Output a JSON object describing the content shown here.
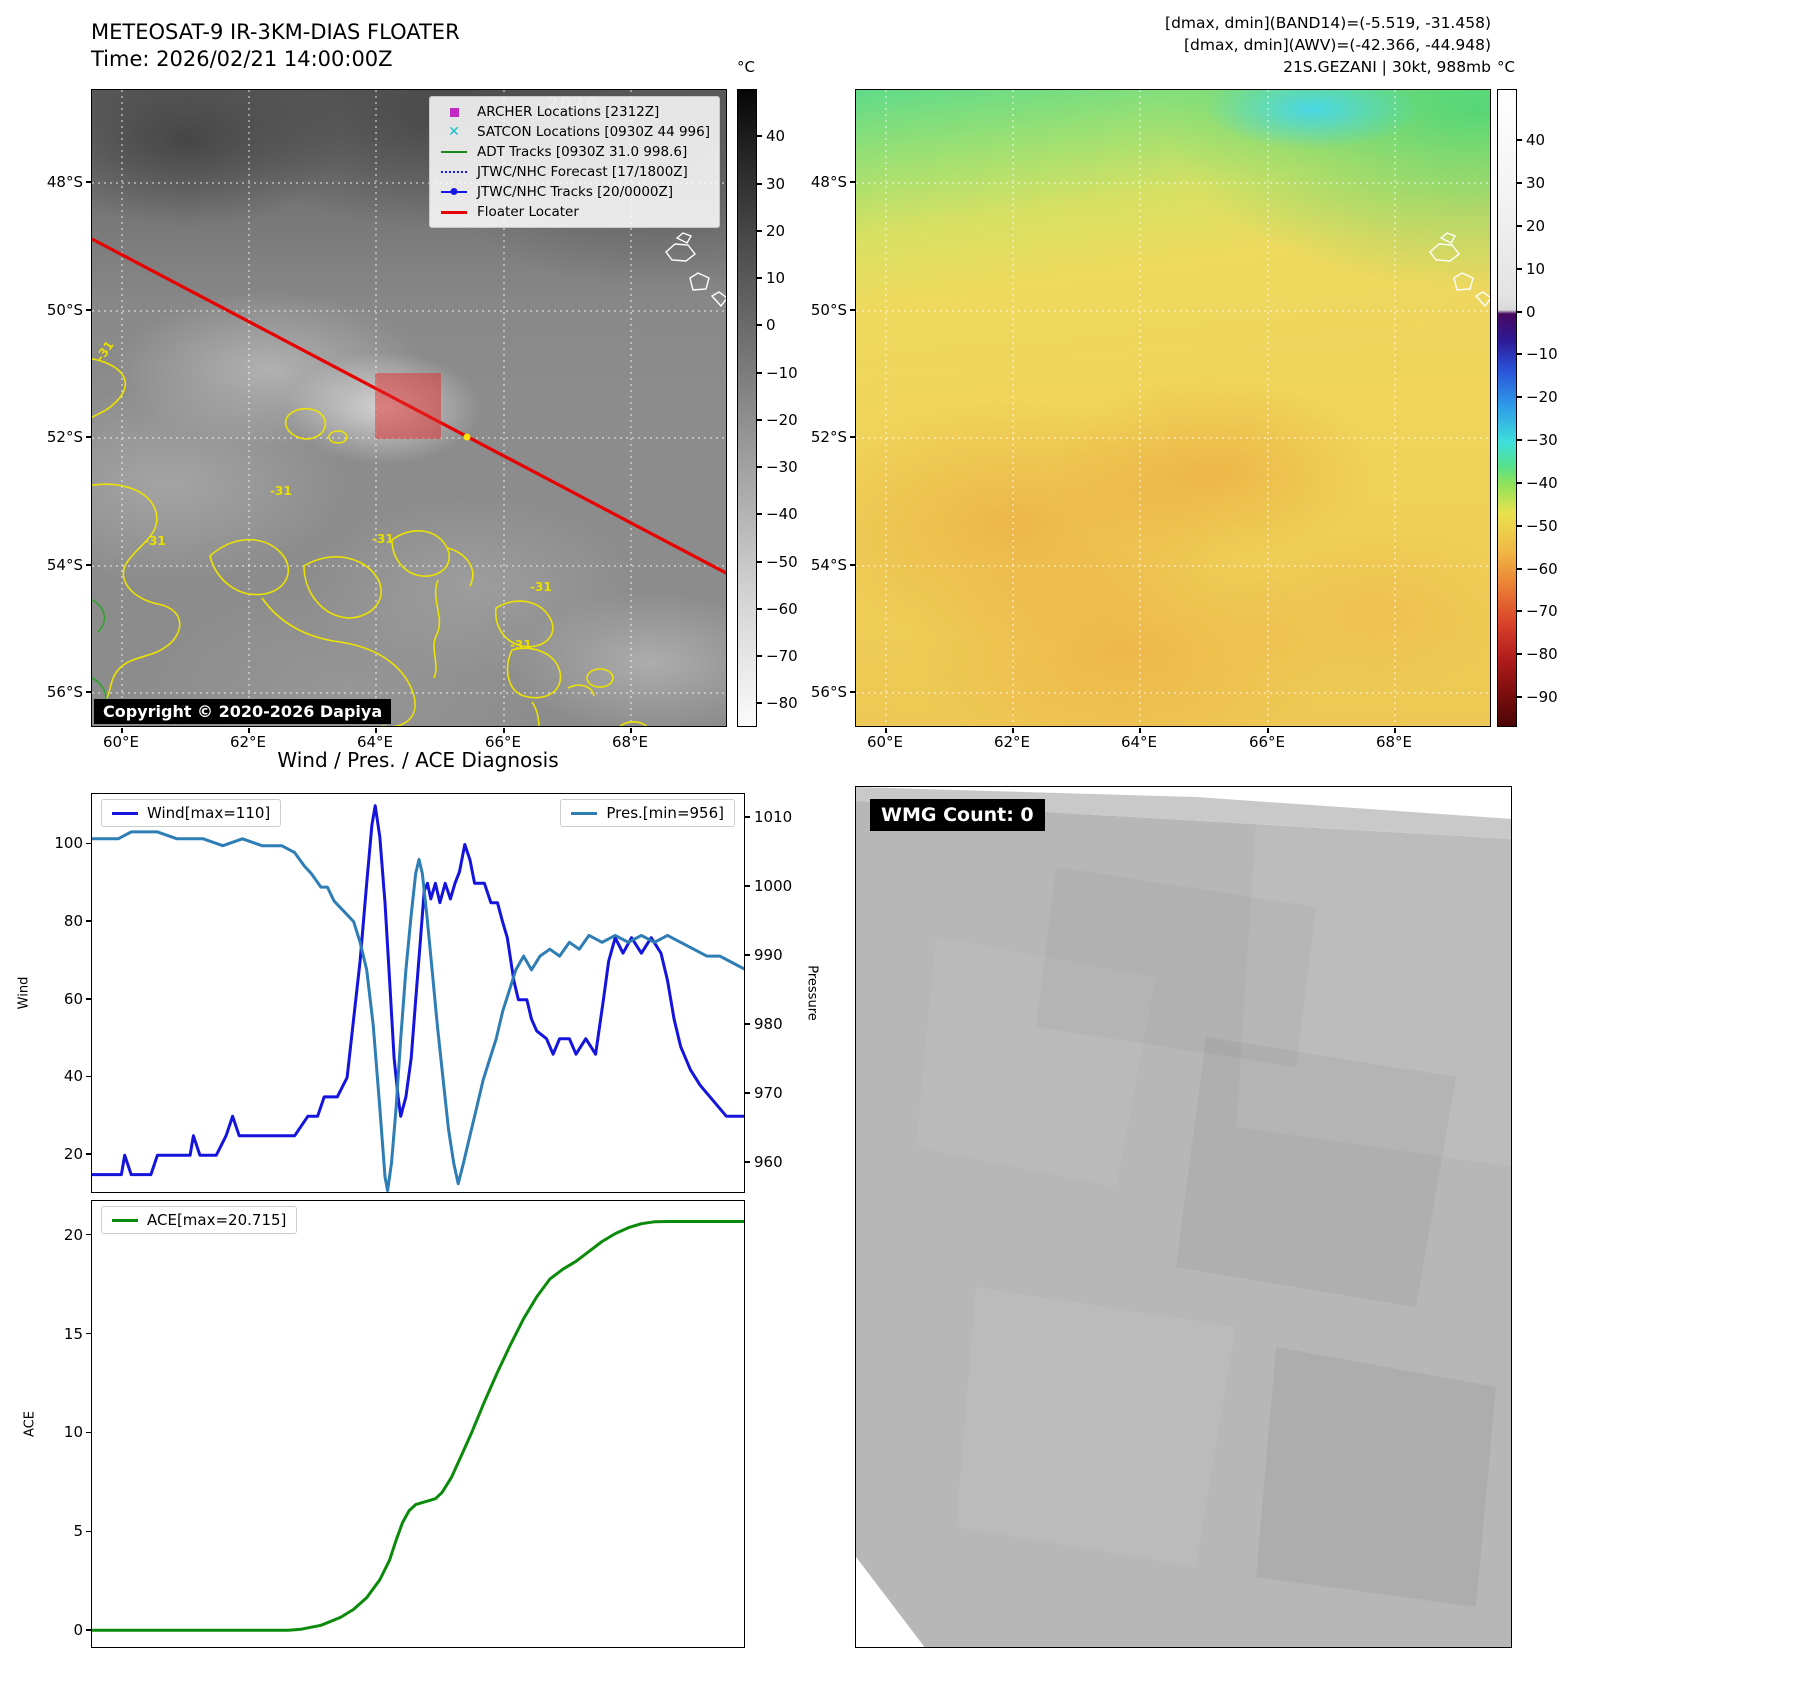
{
  "panels": {
    "tl": {
      "title": "METEOSAT-9 IR-3KM-DIAS FLOATER",
      "subtitle": "Time: 2026/02/21 14:00:00Z",
      "copyright": "Copyright © 2020-2026 Dapiya",
      "watermark": "2026",
      "contour_label": "-31",
      "colorbar": {
        "unit": "°C",
        "ticks": [
          40,
          30,
          20,
          10,
          0,
          -10,
          -20,
          -30,
          -40,
          -50,
          -60,
          -70,
          -80
        ]
      },
      "lat_ticks": [
        "48°S",
        "50°S",
        "52°S",
        "54°S",
        "56°S"
      ],
      "lon_ticks": [
        "60°E",
        "62°E",
        "64°E",
        "66°E",
        "68°E"
      ],
      "legend": {
        "items": [
          {
            "marker": "square-magenta",
            "label": "ARCHER Locations [2312Z]"
          },
          {
            "marker": "cross-cyan",
            "label": "SATCON Locations [0930Z 44 996]"
          },
          {
            "marker": "line-green",
            "label": "ADT Tracks [0930Z 31.0 998.6]"
          },
          {
            "marker": "line-dotted-blue",
            "label": "JTWC/NHC Forecast [17/1800Z]"
          },
          {
            "marker": "line-dot-blue",
            "label": "JTWC/NHC Tracks [20/0000Z]"
          },
          {
            "marker": "line-red",
            "label": "Floater Locater"
          }
        ]
      }
    },
    "tr": {
      "header_lines": [
        "[dmax, dmin](BAND14)=(-5.519, -31.458)",
        "[dmax, dmin](AWV)=(-42.366, -44.948)",
        "21S.GEZANI | 30kt, 988mb"
      ],
      "colorbar": {
        "unit": "°C",
        "ticks": [
          40,
          30,
          20,
          10,
          0,
          -10,
          -20,
          -30,
          -40,
          -50,
          -60,
          -70,
          -80,
          -90
        ]
      },
      "lat_ticks": [
        "48°S",
        "50°S",
        "52°S",
        "54°S",
        "56°S"
      ],
      "lon_ticks": [
        "60°E",
        "62°E",
        "64°E",
        "66°E",
        "68°E"
      ]
    },
    "bl": {
      "title": "Wind / Pres. / ACE Diagnosis"
    },
    "br": {
      "label": "WMG Count: 0"
    }
  },
  "chart_data": [
    {
      "type": "line",
      "title": "Wind / Pres. / ACE Diagnosis",
      "x_range": [
        0,
        1
      ],
      "grid": false,
      "legend_position": "top-left and top-right",
      "left_axis": {
        "label": "Wind",
        "ticks": [
          100,
          80,
          60,
          40,
          20
        ],
        "range": [
          10,
          113
        ]
      },
      "right_axis": {
        "label": "Pressure",
        "ticks": [
          1010,
          1000,
          990,
          980,
          970,
          960
        ],
        "range": [
          955.5,
          1013.5
        ]
      },
      "series": [
        {
          "name": "Wind[max=110]",
          "axis": "left",
          "color": "#1414dd",
          "points": [
            [
              0,
              15
            ],
            [
              0.03,
              15
            ],
            [
              0.045,
              15
            ],
            [
              0.05,
              20
            ],
            [
              0.06,
              15
            ],
            [
              0.09,
              15
            ],
            [
              0.1,
              20
            ],
            [
              0.13,
              20
            ],
            [
              0.15,
              20
            ],
            [
              0.155,
              25
            ],
            [
              0.165,
              20
            ],
            [
              0.19,
              20
            ],
            [
              0.205,
              25
            ],
            [
              0.215,
              30
            ],
            [
              0.225,
              25
            ],
            [
              0.25,
              25
            ],
            [
              0.28,
              25
            ],
            [
              0.31,
              25
            ],
            [
              0.33,
              30
            ],
            [
              0.345,
              30
            ],
            [
              0.355,
              35
            ],
            [
              0.375,
              35
            ],
            [
              0.39,
              40
            ],
            [
              0.4,
              55
            ],
            [
              0.41,
              70
            ],
            [
              0.42,
              90
            ],
            [
              0.428,
              105
            ],
            [
              0.433,
              110
            ],
            [
              0.44,
              102
            ],
            [
              0.448,
              85
            ],
            [
              0.455,
              65
            ],
            [
              0.462,
              45
            ],
            [
              0.468,
              35
            ],
            [
              0.472,
              30
            ],
            [
              0.48,
              35
            ],
            [
              0.488,
              45
            ],
            [
              0.495,
              60
            ],
            [
              0.502,
              75
            ],
            [
              0.508,
              88
            ],
            [
              0.513,
              90
            ],
            [
              0.518,
              86
            ],
            [
              0.525,
              90
            ],
            [
              0.532,
              85
            ],
            [
              0.54,
              90
            ],
            [
              0.548,
              86
            ],
            [
              0.555,
              90
            ],
            [
              0.562,
              93
            ],
            [
              0.57,
              100
            ],
            [
              0.578,
              96
            ],
            [
              0.585,
              90
            ],
            [
              0.6,
              90
            ],
            [
              0.61,
              85
            ],
            [
              0.62,
              85
            ],
            [
              0.628,
              80
            ],
            [
              0.635,
              76
            ],
            [
              0.645,
              65
            ],
            [
              0.652,
              60
            ],
            [
              0.665,
              60
            ],
            [
              0.672,
              55
            ],
            [
              0.68,
              52
            ],
            [
              0.695,
              50
            ],
            [
              0.705,
              46
            ],
            [
              0.715,
              50
            ],
            [
              0.73,
              50
            ],
            [
              0.74,
              46
            ],
            [
              0.755,
              50
            ],
            [
              0.77,
              46
            ],
            [
              0.782,
              60
            ],
            [
              0.79,
              70
            ],
            [
              0.8,
              76
            ],
            [
              0.812,
              72
            ],
            [
              0.825,
              76
            ],
            [
              0.84,
              72
            ],
            [
              0.855,
              76
            ],
            [
              0.87,
              72
            ],
            [
              0.88,
              65
            ],
            [
              0.89,
              55
            ],
            [
              0.9,
              48
            ],
            [
              0.915,
              42
            ],
            [
              0.93,
              38
            ],
            [
              0.95,
              34
            ],
            [
              0.97,
              30
            ],
            [
              1,
              30
            ]
          ]
        },
        {
          "name": "Pres.[min=956]",
          "axis": "right",
          "color": "#2e7db5",
          "points": [
            [
              0,
              1007
            ],
            [
              0.04,
              1007
            ],
            [
              0.06,
              1008
            ],
            [
              0.1,
              1008
            ],
            [
              0.13,
              1007
            ],
            [
              0.17,
              1007
            ],
            [
              0.2,
              1006
            ],
            [
              0.23,
              1007
            ],
            [
              0.26,
              1006
            ],
            [
              0.29,
              1006
            ],
            [
              0.31,
              1005
            ],
            [
              0.325,
              1003
            ],
            [
              0.335,
              1002
            ],
            [
              0.35,
              1000
            ],
            [
              0.36,
              1000
            ],
            [
              0.37,
              998
            ],
            [
              0.38,
              997
            ],
            [
              0.39,
              996
            ],
            [
              0.4,
              995
            ],
            [
              0.41,
              992
            ],
            [
              0.42,
              988
            ],
            [
              0.43,
              980
            ],
            [
              0.44,
              968
            ],
            [
              0.448,
              958
            ],
            [
              0.452,
              956
            ],
            [
              0.458,
              960
            ],
            [
              0.465,
              968
            ],
            [
              0.472,
              978
            ],
            [
              0.48,
              988
            ],
            [
              0.488,
              996
            ],
            [
              0.495,
              1002
            ],
            [
              0.5,
              1004
            ],
            [
              0.505,
              1002
            ],
            [
              0.512,
              996
            ],
            [
              0.52,
              988
            ],
            [
              0.528,
              980
            ],
            [
              0.537,
              972
            ],
            [
              0.545,
              965
            ],
            [
              0.553,
              960
            ],
            [
              0.56,
              957
            ],
            [
              0.568,
              960
            ],
            [
              0.578,
              964
            ],
            [
              0.588,
              968
            ],
            [
              0.598,
              972
            ],
            [
              0.608,
              975
            ],
            [
              0.618,
              978
            ],
            [
              0.628,
              982
            ],
            [
              0.638,
              985
            ],
            [
              0.648,
              988
            ],
            [
              0.66,
              990
            ],
            [
              0.672,
              988
            ],
            [
              0.685,
              990
            ],
            [
              0.7,
              991
            ],
            [
              0.715,
              990
            ],
            [
              0.73,
              992
            ],
            [
              0.745,
              991
            ],
            [
              0.76,
              993
            ],
            [
              0.78,
              992
            ],
            [
              0.8,
              993
            ],
            [
              0.82,
              992
            ],
            [
              0.84,
              993
            ],
            [
              0.86,
              992
            ],
            [
              0.88,
              993
            ],
            [
              0.9,
              992
            ],
            [
              0.92,
              991
            ],
            [
              0.94,
              990
            ],
            [
              0.96,
              990
            ],
            [
              0.98,
              989
            ],
            [
              1,
              988
            ]
          ]
        }
      ]
    },
    {
      "type": "line",
      "x_range": [
        0,
        1
      ],
      "grid": false,
      "legend_position": "top-left",
      "left_axis": {
        "label": "ACE",
        "ticks": [
          20,
          15,
          10,
          5,
          0
        ],
        "range": [
          -0.9,
          21.75
        ]
      },
      "series": [
        {
          "name": "ACE[max=20.715]",
          "axis": "left",
          "color": "#0b8a0b",
          "points": [
            [
              0,
              0.05
            ],
            [
              0.05,
              0.05
            ],
            [
              0.1,
              0.05
            ],
            [
              0.15,
              0.05
            ],
            [
              0.2,
              0.05
            ],
            [
              0.25,
              0.05
            ],
            [
              0.3,
              0.05
            ],
            [
              0.32,
              0.1
            ],
            [
              0.35,
              0.3
            ],
            [
              0.38,
              0.7
            ],
            [
              0.4,
              1.1
            ],
            [
              0.42,
              1.7
            ],
            [
              0.44,
              2.6
            ],
            [
              0.455,
              3.6
            ],
            [
              0.465,
              4.6
            ],
            [
              0.475,
              5.5
            ],
            [
              0.485,
              6.1
            ],
            [
              0.495,
              6.4
            ],
            [
              0.505,
              6.5
            ],
            [
              0.515,
              6.6
            ],
            [
              0.525,
              6.7
            ],
            [
              0.535,
              7
            ],
            [
              0.55,
              7.8
            ],
            [
              0.565,
              8.9
            ],
            [
              0.58,
              10
            ],
            [
              0.6,
              11.6
            ],
            [
              0.62,
              13.1
            ],
            [
              0.64,
              14.5
            ],
            [
              0.66,
              15.8
            ],
            [
              0.68,
              16.9
            ],
            [
              0.7,
              17.8
            ],
            [
              0.72,
              18.3
            ],
            [
              0.74,
              18.7
            ],
            [
              0.76,
              19.2
            ],
            [
              0.78,
              19.7
            ],
            [
              0.8,
              20.1
            ],
            [
              0.82,
              20.4
            ],
            [
              0.84,
              20.6
            ],
            [
              0.86,
              20.7
            ],
            [
              0.88,
              20.715
            ],
            [
              0.92,
              20.715
            ],
            [
              0.96,
              20.715
            ],
            [
              1,
              20.715
            ]
          ]
        }
      ]
    }
  ]
}
